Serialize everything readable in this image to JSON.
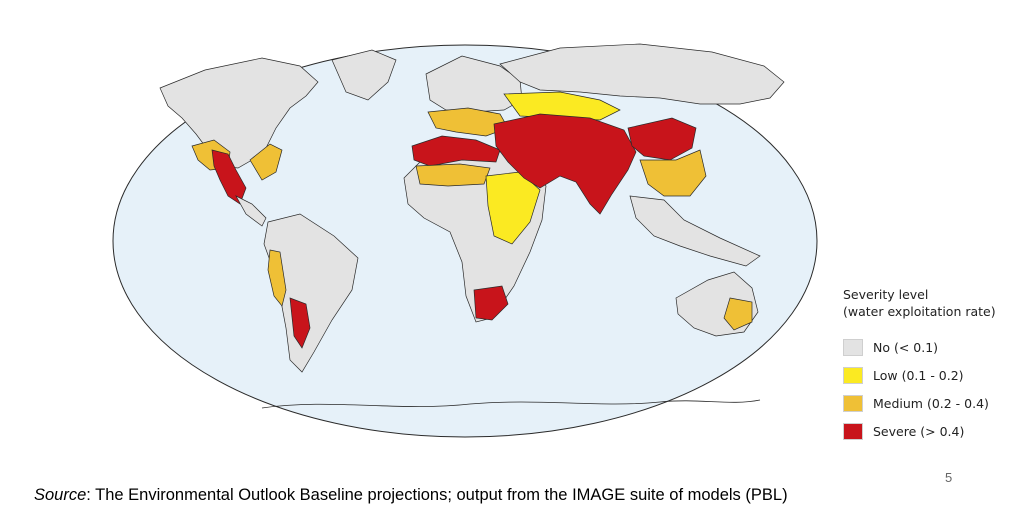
{
  "map": {
    "region_classes": {
      "north_america": "no",
      "us_southwest": "medium",
      "mexico": "severe",
      "us_east": "medium",
      "central_america": "no",
      "south_america": "no",
      "andes_west": "medium",
      "patagonia": "severe",
      "greenland": "no",
      "europe": "no",
      "southern_europe": "medium",
      "north_africa": "severe",
      "sahel": "medium",
      "east_africa": "low",
      "central_africa": "no",
      "southern_africa": "severe",
      "russia": "no",
      "central_asia": "low",
      "middle_east_south_asia": "severe",
      "china_east": "medium",
      "china_north": "severe",
      "southeast_asia": "no",
      "australia": "no",
      "australia_se": "medium"
    }
  },
  "legend": {
    "title": "Severity level",
    "subtitle": "(water exploitation rate)",
    "items": [
      {
        "key": "no",
        "label": "No (< 0.1)",
        "color": "#e3e3e3"
      },
      {
        "key": "low",
        "label": "Low (0.1 - 0.2)",
        "color": "#fbea22"
      },
      {
        "key": "medium",
        "label": "Medium (0.2 - 0.4)",
        "color": "#efc036"
      },
      {
        "key": "severe",
        "label": "Severe (> 0.4)",
        "color": "#c8141b"
      }
    ]
  },
  "ocean_color": "#e6f1f9",
  "source": {
    "label": "Source",
    "text": ": The Environmental Outlook Baseline projections; output from the IMAGE suite of models (PBL)"
  },
  "page_number": "5"
}
